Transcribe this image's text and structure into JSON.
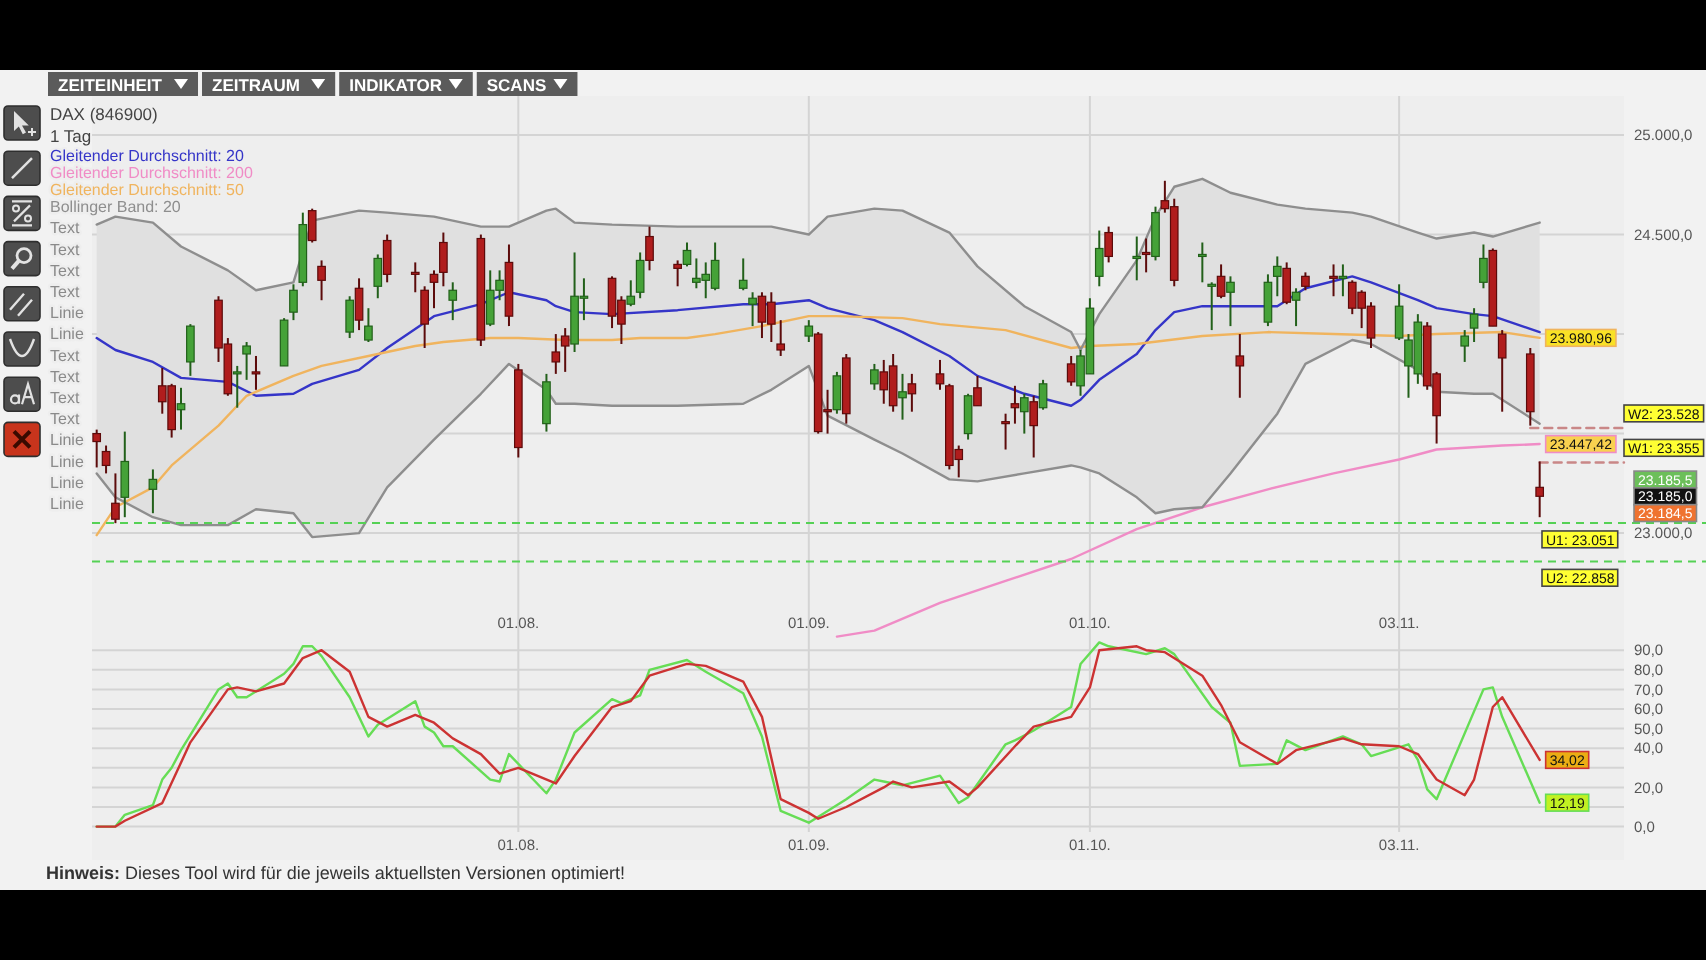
{
  "chart_data": [
    {
      "type": "other",
      "annotations": [
        "ZEITEINHEIT",
        "ZEITRAUM",
        "INDIKATOR",
        "SCANS"
      ]
    },
    {
      "type": "candlestick",
      "title": "DAX (846900)",
      "subtitle": "1 Tag",
      "x": [
        "--06-17",
        "--06-18",
        "--06-19",
        "--06-20",
        "--06-23",
        "--06-24",
        "--06-25",
        "--06-26",
        "--06-27",
        "--06-30",
        "--07-01",
        "--07-02",
        "--07-03",
        "--07-04",
        "--07-07",
        "--07-08",
        "--07-09",
        "--07-10",
        "--07-11",
        "--07-14",
        "--07-15",
        "--07-16",
        "--07-17",
        "--07-18",
        "--07-21",
        "--07-22",
        "--07-23",
        "--07-24",
        "--07-25",
        "--07-28",
        "--07-29",
        "--07-30",
        "--07-31",
        "--08-01",
        "--08-04",
        "--08-05",
        "--08-06",
        "--08-07",
        "--08-08",
        "--08-11",
        "--08-12",
        "--08-13",
        "--08-14",
        "--08-15",
        "--08-18",
        "--08-19",
        "--08-20",
        "--08-21",
        "--08-22",
        "--08-25",
        "--08-26",
        "--08-27",
        "--08-28",
        "--08-29",
        "--09-01",
        "--09-02",
        "--09-03",
        "--09-04",
        "--09-05",
        "--09-08",
        "--09-09",
        "--09-10",
        "--09-11",
        "--09-12",
        "--09-15",
        "--09-16",
        "--09-17",
        "--09-18",
        "--09-19",
        "--09-22",
        "--09-23",
        "--09-24",
        "--09-25",
        "--09-26",
        "--09-29",
        "--09-30",
        "--10-01",
        "--10-02",
        "--10-03",
        "--10-06",
        "--10-07",
        "--10-08",
        "--10-09",
        "--10-10",
        "--10-13",
        "--10-14",
        "--10-15",
        "--10-16",
        "--10-17",
        "--10-20",
        "--10-21",
        "--10-22",
        "--10-23",
        "--10-24",
        "--10-27",
        "--10-28",
        "--10-29",
        "--10-30",
        "--10-31",
        "--11-03",
        "--11-04",
        "--11-05",
        "--11-06",
        "--11-07",
        "--11-10",
        "--11-11",
        "--11-12",
        "--11-13",
        "--11-14",
        "--11-17",
        "--11-18"
      ],
      "ohlc": [
        [
          23500,
          23520,
          23330,
          23460
        ],
        [
          23410,
          23440,
          23300,
          23340
        ],
        [
          23150,
          23300,
          23050,
          23070
        ],
        [
          23180,
          23510,
          23080,
          23360
        ],
        [
          23220,
          23320,
          23100,
          23270
        ],
        [
          23740,
          23830,
          23600,
          23660
        ],
        [
          23740,
          23750,
          23480,
          23520
        ],
        [
          23620,
          23730,
          23520,
          23650
        ],
        [
          23860,
          24050,
          23790,
          24040
        ],
        [
          24170,
          24190,
          23860,
          23930
        ],
        [
          23950,
          23980,
          23690,
          23700
        ],
        [
          23800,
          23840,
          23630,
          23810
        ],
        [
          23900,
          23960,
          23770,
          23940
        ],
        [
          23810,
          23890,
          23720,
          23800
        ],
        [
          23840,
          24080,
          23840,
          24070
        ],
        [
          24110,
          24250,
          24070,
          24220
        ],
        [
          24260,
          24610,
          24240,
          24550
        ],
        [
          24620,
          24630,
          24460,
          24470
        ],
        [
          24340,
          24370,
          24170,
          24270
        ],
        [
          24010,
          24190,
          23980,
          24170
        ],
        [
          24230,
          24280,
          24020,
          24070
        ],
        [
          23970,
          24130,
          23960,
          24040
        ],
        [
          24240,
          24400,
          24180,
          24380
        ],
        [
          24470,
          24500,
          24260,
          24300
        ],
        [
          24310,
          24360,
          24210,
          24300
        ],
        [
          24220,
          24240,
          23930,
          24050
        ],
        [
          24300,
          24320,
          24130,
          24260
        ],
        [
          24460,
          24510,
          24240,
          24310
        ],
        [
          24170,
          24260,
          24070,
          24220
        ],
        [
          24480,
          24500,
          23940,
          23970
        ],
        [
          24050,
          24320,
          24040,
          24220
        ],
        [
          24220,
          24320,
          24170,
          24270
        ],
        [
          24360,
          24450,
          24040,
          24090
        ],
        [
          23820,
          23850,
          23380,
          23430
        ],
        [
          23550,
          23800,
          23510,
          23760
        ],
        [
          23910,
          24000,
          23800,
          23860
        ],
        [
          23990,
          24030,
          23810,
          23940
        ],
        [
          23950,
          24410,
          23910,
          24190
        ],
        [
          24180,
          24280,
          24070,
          24190
        ],
        [
          24280,
          24290,
          24030,
          24090
        ],
        [
          24170,
          24190,
          23950,
          24050
        ],
        [
          24150,
          24270,
          24140,
          24190
        ],
        [
          24210,
          24410,
          24180,
          24370
        ],
        [
          24490,
          24540,
          24320,
          24370
        ],
        [
          24350,
          24370,
          24240,
          24330
        ],
        [
          24350,
          24460,
          24340,
          24420
        ],
        [
          24260,
          24380,
          24230,
          24280
        ],
        [
          24270,
          24360,
          24180,
          24300
        ],
        [
          24230,
          24460,
          24220,
          24370
        ],
        [
          24230,
          24380,
          24220,
          24270
        ],
        [
          24150,
          24210,
          24040,
          24180
        ],
        [
          24190,
          24210,
          23980,
          24060
        ],
        [
          24160,
          24210,
          23960,
          24050
        ],
        [
          23950,
          24070,
          23890,
          23920
        ],
        [
          23990,
          24070,
          23960,
          24040
        ],
        [
          24000,
          24010,
          23500,
          23510
        ],
        [
          23620,
          23720,
          23500,
          23610
        ],
        [
          23620,
          23810,
          23600,
          23790
        ],
        [
          23880,
          23900,
          23550,
          23600
        ],
        [
          23750,
          23850,
          23720,
          23820
        ],
        [
          23810,
          23870,
          23650,
          23720
        ],
        [
          23840,
          23900,
          23610,
          23640
        ],
        [
          23680,
          23800,
          23570,
          23710
        ],
        [
          23750,
          23800,
          23610,
          23700
        ],
        [
          23800,
          23870,
          23720,
          23750
        ],
        [
          23740,
          23750,
          23320,
          23340
        ],
        [
          23420,
          23440,
          23280,
          23370
        ],
        [
          23500,
          23700,
          23470,
          23690
        ],
        [
          23730,
          23790,
          23640,
          23640
        ],
        [
          23560,
          23600,
          23420,
          23550
        ],
        [
          23650,
          23740,
          23550,
          23630
        ],
        [
          23610,
          23700,
          23500,
          23680
        ],
        [
          23660,
          23690,
          23380,
          23540
        ],
        [
          23630,
          23770,
          23620,
          23750
        ],
        [
          23850,
          23890,
          23740,
          23760
        ],
        [
          23740,
          23920,
          23690,
          23890
        ],
        [
          23800,
          24180,
          23800,
          24130
        ],
        [
          24290,
          24520,
          24240,
          24430
        ],
        [
          24510,
          24540,
          24360,
          24390
        ],
        [
          24380,
          24490,
          24270,
          24390
        ],
        [
          24410,
          24480,
          24310,
          24400
        ],
        [
          24390,
          24640,
          24370,
          24610
        ],
        [
          24670,
          24770,
          24610,
          24630
        ],
        [
          24640,
          24680,
          24240,
          24270
        ],
        [
          24390,
          24460,
          24260,
          24400
        ],
        [
          24240,
          24260,
          24020,
          24250
        ],
        [
          24290,
          24350,
          24180,
          24190
        ],
        [
          24210,
          24290,
          24040,
          24260
        ],
        [
          23890,
          24000,
          23680,
          23840
        ],
        [
          24060,
          24300,
          24040,
          24260
        ],
        [
          24290,
          24390,
          24190,
          24340
        ],
        [
          24330,
          24360,
          24150,
          24160
        ],
        [
          24170,
          24230,
          24040,
          24210
        ],
        [
          24290,
          24310,
          24220,
          24240
        ],
        [
          24290,
          24350,
          24190,
          24280
        ],
        [
          24280,
          24350,
          24190,
          24290
        ],
        [
          24260,
          24270,
          24100,
          24130
        ],
        [
          24210,
          24220,
          24030,
          24130
        ],
        [
          24140,
          24160,
          23930,
          23980
        ],
        [
          23980,
          24250,
          23970,
          24140
        ],
        [
          23840,
          24000,
          23680,
          23970
        ],
        [
          23800,
          24100,
          23750,
          24060
        ],
        [
          24040,
          24060,
          23720,
          23740
        ],
        [
          23800,
          23810,
          23450,
          23590
        ],
        [
          23940,
          24020,
          23860,
          23990
        ],
        [
          24030,
          24130,
          23960,
          24100
        ],
        [
          24260,
          24450,
          24230,
          24380
        ],
        [
          24420,
          24430,
          24040,
          24040
        ],
        [
          24000,
          24020,
          23610,
          23880
        ],
        [
          23900,
          23930,
          23540,
          23610
        ],
        [
          23230,
          23360,
          23080,
          23185
        ]
      ],
      "series": [
        {
          "name": "Gleitender Durchschnitt: 20",
          "type": "line",
          "color": "#3535c8",
          "x": [
            "--06-17",
            "--06-19",
            "--06-23",
            "--06-26",
            "--07-01",
            "--07-04",
            "--07-08",
            "--07-10",
            "--07-15",
            "--07-18",
            "--07-23",
            "--07-28",
            "--07-31",
            "--08-04",
            "--08-05",
            "--08-07",
            "--08-11",
            "--08-18",
            "--08-25",
            "--08-28",
            "--09-01",
            "--09-03",
            "--09-08",
            "--09-11",
            "--09-16",
            "--09-19",
            "--09-24",
            "--09-29",
            "--09-30",
            "--10-02",
            "--10-06",
            "--10-08",
            "--10-10",
            "--10-13",
            "--10-16",
            "--10-21",
            "--10-24",
            "--10-29",
            "--10-31",
            "--11-05",
            "--11-07",
            "--11-11",
            "--11-13",
            "--11-18"
          ],
          "values": [
            23980,
            23920,
            23860,
            23780,
            23760,
            23690,
            23700,
            23750,
            23820,
            23930,
            24090,
            24150,
            24210,
            24170,
            24140,
            24110,
            24100,
            24120,
            24150,
            24150,
            24170,
            24130,
            24070,
            24010,
            23890,
            23790,
            23700,
            23640,
            23670,
            23770,
            23900,
            24020,
            24110,
            24140,
            24140,
            24140,
            24230,
            24290,
            24260,
            24170,
            24130,
            24100,
            24090,
            24010
          ],
          "lower": [
            23300,
            23180,
            23080,
            23040,
            23040,
            23120,
            23100,
            22980,
            23000,
            23230,
            23470,
            23700,
            23850,
            23720,
            23650,
            23650,
            23640,
            23640,
            23650,
            23720,
            23840,
            23590,
            23470,
            23400,
            23270,
            23260,
            23300,
            23340,
            23330,
            23300,
            23180,
            23100,
            23120,
            23130,
            23300,
            23600,
            23850,
            23970,
            23950,
            23820,
            23710,
            23700,
            23700,
            23550
          ],
          "upper": [
            24550,
            24590,
            24560,
            24440,
            24320,
            24220,
            24260,
            24570,
            24620,
            24610,
            24590,
            24540,
            24540,
            24620,
            24630,
            24560,
            24550,
            24540,
            24540,
            24540,
            24500,
            24590,
            24630,
            24620,
            24510,
            24340,
            24140,
            24010,
            23920,
            24100,
            24370,
            24590,
            24740,
            24780,
            24710,
            24650,
            24630,
            24610,
            24590,
            24510,
            24480,
            24510,
            24490,
            24560
          ]
        },
        {
          "name": "Gleitender Durchschnitt: 200",
          "type": "line",
          "color": "#f08cc6",
          "x": [
            "--09-04",
            "--09-08",
            "--09-15",
            "--09-22",
            "--09-29",
            "--10-06",
            "--10-13",
            "--10-20",
            "--10-27",
            "--11-03",
            "--11-07",
            "--11-14",
            "--11-18"
          ],
          "values": [
            22480,
            22510,
            22650,
            22760,
            22870,
            23020,
            23130,
            23220,
            23300,
            23370,
            23420,
            23440,
            23447.42
          ],
          "value_labels": [
            null,
            null,
            null,
            null,
            null,
            null,
            null,
            null,
            null,
            null,
            null,
            null,
            "23.447,42"
          ]
        },
        {
          "name": "Gleitender Durchschnitt: 50",
          "type": "line",
          "color": "#f0b45e",
          "x": [
            "--06-17",
            "--06-19",
            "--06-23",
            "--06-25",
            "--06-30",
            "--07-03",
            "--07-08",
            "--07-11",
            "--07-16",
            "--07-21",
            "--07-24",
            "--07-29",
            "--08-01",
            "--08-06",
            "--08-11",
            "--08-14",
            "--08-19",
            "--08-22",
            "--08-27",
            "--09-01",
            "--09-04",
            "--09-11",
            "--09-15",
            "--09-22",
            "--09-29",
            "--10-01",
            "--10-06",
            "--10-13",
            "--10-20",
            "--10-27",
            "--11-03",
            "--11-07",
            "--11-14",
            "--11-18"
          ],
          "values": [
            22990,
            23130,
            23230,
            23340,
            23540,
            23690,
            23790,
            23840,
            23890,
            23940,
            23960,
            23980,
            23980,
            23970,
            23970,
            23980,
            23980,
            24000,
            24040,
            24090,
            24090,
            24080,
            24050,
            24020,
            23930,
            23940,
            23950,
            23990,
            24010,
            24000,
            23990,
            24000,
            24010,
            23980.96
          ],
          "value_labels": [
            null,
            null,
            null,
            null,
            null,
            null,
            null,
            null,
            null,
            null,
            null,
            null,
            null,
            null,
            null,
            null,
            null,
            null,
            null,
            null,
            null,
            null,
            null,
            null,
            null,
            null,
            null,
            null,
            null,
            null,
            null,
            null,
            null,
            "23.980,96"
          ]
        },
        {
          "name": "Bollinger Band: 20",
          "type": "line",
          "color": "#8e8e8e",
          "x": [
            "--06-17",
            "--06-19",
            "--06-23",
            "--06-26",
            "--07-01",
            "--07-04",
            "--07-08",
            "--07-10",
            "--07-15",
            "--07-18",
            "--07-23",
            "--07-28",
            "--07-31",
            "--08-04",
            "--08-05",
            "--08-07",
            "--08-11",
            "--08-18",
            "--08-25",
            "--08-28",
            "--09-01",
            "--09-03",
            "--09-08",
            "--09-11",
            "--09-16",
            "--09-19",
            "--09-24",
            "--09-29",
            "--09-30",
            "--10-02",
            "--10-06",
            "--10-08",
            "--10-10",
            "--10-13",
            "--10-16",
            "--10-21",
            "--10-24",
            "--10-29",
            "--10-31",
            "--11-05",
            "--11-07",
            "--11-11",
            "--11-13",
            "--11-18"
          ],
          "values": [
            24550,
            24590,
            24560,
            24440,
            24320,
            24220,
            24260,
            24570,
            24620,
            24610,
            24590,
            24540,
            24540,
            24620,
            24630,
            24560,
            24550,
            24540,
            24540,
            24540,
            24500,
            24590,
            24630,
            24620,
            24510,
            24340,
            24140,
            24010,
            23920,
            24100,
            24370,
            24590,
            24740,
            24780,
            24710,
            24650,
            24630,
            24610,
            24590,
            24510,
            24480,
            24510,
            24490,
            24560
          ]
        },
        {
          "type": "line",
          "color": "#8e8e8e",
          "x": [
            "--06-17",
            "--06-19",
            "--06-23",
            "--06-26",
            "--07-01",
            "--07-04",
            "--07-08",
            "--07-10",
            "--07-15",
            "--07-18",
            "--07-23",
            "--07-28",
            "--07-31",
            "--08-04",
            "--08-05",
            "--08-07",
            "--08-11",
            "--08-18",
            "--08-25",
            "--08-28",
            "--09-01",
            "--09-03",
            "--09-08",
            "--09-11",
            "--09-16",
            "--09-19",
            "--09-24",
            "--09-29",
            "--09-30",
            "--10-02",
            "--10-06",
            "--10-08",
            "--10-10",
            "--10-13",
            "--10-16",
            "--10-21",
            "--10-24",
            "--10-29",
            "--10-31",
            "--11-05",
            "--11-07",
            "--11-11",
            "--11-13",
            "--11-18"
          ],
          "values": [
            23300,
            23180,
            23080,
            23040,
            23040,
            23120,
            23100,
            22980,
            23000,
            23230,
            23470,
            23700,
            23850,
            23720,
            23650,
            23650,
            23640,
            23640,
            23650,
            23720,
            23840,
            23590,
            23470,
            23400,
            23270,
            23260,
            23300,
            23340,
            23330,
            23300,
            23180,
            23100,
            23120,
            23130,
            23300,
            23600,
            23850,
            23970,
            23950,
            23820,
            23710,
            23700,
            23700,
            23550
          ]
        },
        {
          "type": "line",
          "color": "#c98787",
          "line_style": "dashed",
          "x": [
            "--11-17",
            "--11-27"
          ],
          "values": [
            23528,
            23528
          ]
        },
        {
          "type": "line",
          "color": "#c98787",
          "line_style": "dashed",
          "x": [
            "--11-18",
            "--11-27"
          ],
          "values": [
            23355,
            23355
          ]
        }
      ],
      "xlim": [
        "--06-17",
        "--11-27"
      ],
      "xticks": [
        {
          "value": "--08-01",
          "label": "01.08."
        },
        {
          "value": "--09-01",
          "label": "01.09."
        },
        {
          "value": "--10-01",
          "label": "01.10."
        },
        {
          "value": "--11-03",
          "label": "03.11."
        }
      ],
      "ylim": [
        22450,
        25200
      ],
      "yticks": [
        {
          "value": 23000,
          "label": "23.000,0"
        },
        {
          "value": 23500,
          "label": null
        },
        {
          "value": 24000,
          "label": null
        },
        {
          "value": 24500,
          "label": "24.500,0"
        },
        {
          "value": 25000,
          "label": "25.000,0"
        }
      ],
      "grid": true,
      "legend": "top left",
      "ref_lines": [
        {
          "axis": "y",
          "value": 23051,
          "label": "U1: 23.051",
          "color": "#55d155",
          "line_style": "dashed"
        },
        {
          "axis": "y",
          "value": 22858,
          "label": "U2: 22.858",
          "color": "#55d155",
          "line_style": "dashed"
        }
      ],
      "annotations": [
        "Text",
        "Text",
        "Text",
        "Text",
        "Linie",
        "Linie",
        "Text",
        "Text",
        "Text",
        "Text",
        "Linie",
        "Linie",
        "Linie",
        "Linie",
        {
          "text": "W2: 23.528",
          "x": "--11-27",
          "y": 23528
        },
        {
          "text": "W1: 23.355",
          "x": "--11-27",
          "y": 23355
        }
      ]
    },
    {
      "type": "other",
      "annotations": [
        "23.185,5",
        "23.185,0",
        "23.184,5"
      ]
    },
    {
      "type": "line",
      "series": [
        {
          "color": "#66dd55",
          "x": [
            "--06-17",
            "--06-19",
            "--06-20",
            "--06-23",
            "--06-24",
            "--06-25",
            "--06-26",
            "--06-30",
            "--07-01",
            "--07-02",
            "--07-03",
            "--07-07",
            "--07-08",
            "--07-09",
            "--07-10",
            "--07-11",
            "--07-14",
            "--07-16",
            "--07-17",
            "--07-21",
            "--07-22",
            "--07-23",
            "--07-24",
            "--07-25",
            "--07-29",
            "--07-30",
            "--07-31",
            "--08-04",
            "--08-05",
            "--08-07",
            "--08-11",
            "--08-12",
            "--08-14",
            "--08-15",
            "--08-19",
            "--08-21",
            "--08-25",
            "--08-27",
            "--08-29",
            "--09-01",
            "--09-03",
            "--09-05",
            "--09-08",
            "--09-09",
            "--09-11",
            "--09-15",
            "--09-17",
            "--09-18",
            "--09-22",
            "--09-23",
            "--09-25",
            "--09-29",
            "--09-30",
            "--10-02",
            "--10-03",
            "--10-07",
            "--10-09",
            "--10-10",
            "--10-14",
            "--10-16",
            "--10-17",
            "--10-21",
            "--10-22",
            "--10-24",
            "--10-28",
            "--10-30",
            "--10-31",
            "--11-04",
            "--11-05",
            "--11-06",
            "--11-07",
            "--11-12",
            "--11-13",
            "--11-14",
            "--11-18"
          ],
          "values": [
            0,
            0,
            6,
            11,
            24,
            30,
            39,
            70,
            73,
            66,
            66,
            78,
            83,
            92,
            92,
            87,
            66,
            46,
            52,
            64,
            51,
            48,
            41,
            41,
            24,
            23,
            37,
            17,
            24,
            48,
            65,
            63,
            67,
            80,
            85,
            79,
            68,
            46,
            8,
            2,
            8,
            14,
            24,
            23,
            21,
            26,
            12,
            15,
            42,
            44,
            49,
            61,
            83,
            94,
            92,
            88,
            91,
            88,
            61,
            53,
            31,
            32,
            44,
            39,
            46,
            42,
            36,
            42,
            34,
            19,
            14,
            70,
            71,
            56,
            12.19
          ],
          "value_labels": [
            null,
            null,
            null,
            null,
            null,
            null,
            null,
            null,
            null,
            null,
            null,
            null,
            null,
            null,
            null,
            null,
            null,
            null,
            null,
            null,
            null,
            null,
            null,
            null,
            null,
            null,
            null,
            null,
            null,
            null,
            null,
            null,
            null,
            null,
            null,
            null,
            null,
            null,
            null,
            null,
            null,
            null,
            null,
            null,
            null,
            null,
            null,
            null,
            null,
            null,
            null,
            null,
            null,
            null,
            null,
            null,
            null,
            null,
            null,
            null,
            null,
            null,
            null,
            null,
            null,
            null,
            null,
            null,
            null,
            null,
            null,
            null,
            null,
            null,
            "12,19"
          ]
        },
        {
          "color": "#cc3333",
          "x": [
            "--06-17",
            "--06-19",
            "--06-20",
            "--06-24",
            "--06-27",
            "--07-01",
            "--07-02",
            "--07-04",
            "--07-07",
            "--07-09",
            "--07-11",
            "--07-14",
            "--07-16",
            "--07-18",
            "--07-21",
            "--07-23",
            "--07-25",
            "--07-28",
            "--07-30",
            "--08-01",
            "--08-05",
            "--08-07",
            "--08-11",
            "--08-13",
            "--08-15",
            "--08-19",
            "--08-21",
            "--08-25",
            "--08-27",
            "--08-29",
            "--09-01",
            "--09-02",
            "--09-05",
            "--09-09",
            "--09-10",
            "--09-12",
            "--09-16",
            "--09-18",
            "--09-19",
            "--09-23",
            "--09-25",
            "--09-29",
            "--10-01",
            "--10-02",
            "--10-06",
            "--10-07",
            "--10-09",
            "--10-13",
            "--10-15",
            "--10-17",
            "--10-21",
            "--10-23",
            "--10-28",
            "--10-30",
            "--11-03",
            "--11-05",
            "--11-07",
            "--11-10",
            "--11-11",
            "--11-13",
            "--11-14",
            "--11-18"
          ],
          "values": [
            0,
            0,
            3,
            12,
            43,
            70,
            71,
            69,
            73,
            86,
            90,
            79,
            56,
            51,
            57,
            53,
            45,
            37,
            27,
            30,
            22,
            36,
            61,
            64,
            77,
            83,
            82,
            74,
            56,
            14,
            7,
            4,
            10,
            20,
            23,
            20,
            23,
            16,
            20,
            41,
            51,
            56,
            71,
            90,
            92,
            90,
            89,
            77,
            62,
            43,
            32,
            39,
            45,
            42,
            41,
            37,
            24,
            16,
            24,
            61,
            66,
            34.02
          ],
          "value_labels": [
            null,
            null,
            null,
            null,
            null,
            null,
            null,
            null,
            null,
            null,
            null,
            null,
            null,
            null,
            null,
            null,
            null,
            null,
            null,
            null,
            null,
            null,
            null,
            null,
            null,
            null,
            null,
            null,
            null,
            null,
            null,
            null,
            null,
            null,
            null,
            null,
            null,
            null,
            null,
            null,
            null,
            null,
            null,
            null,
            null,
            null,
            null,
            null,
            null,
            null,
            null,
            null,
            null,
            null,
            null,
            null,
            null,
            null,
            null,
            null,
            null,
            "34,02"
          ]
        }
      ],
      "xlim": [
        "--06-17",
        "--11-27"
      ],
      "xticks": [
        {
          "value": "--08-01",
          "label": "01.08."
        },
        {
          "value": "--09-01",
          "label": "01.09."
        },
        {
          "value": "--10-01",
          "label": "01.10."
        },
        {
          "value": "--11-03",
          "label": "03.11."
        }
      ],
      "ylim": [
        0,
        95
      ],
      "yticks": [
        {
          "value": 0,
          "label": "0,0"
        },
        {
          "value": 10,
          "label": null
        },
        {
          "value": 20,
          "label": "20,0"
        },
        {
          "value": 30,
          "label": null
        },
        {
          "value": 40,
          "label": "40,0"
        },
        {
          "value": 50,
          "label": "50,0"
        },
        {
          "value": 60,
          "label": "60,0"
        },
        {
          "value": 70,
          "label": "70,0"
        },
        {
          "value": 80,
          "label": "80,0"
        },
        {
          "value": 90,
          "label": "90,0"
        }
      ],
      "grid": true,
      "annotations": [
        "Hinweis: Dieses Tool wird für die jeweils aktuellsten Versionen optimiert!"
      ]
    }
  ]
}
